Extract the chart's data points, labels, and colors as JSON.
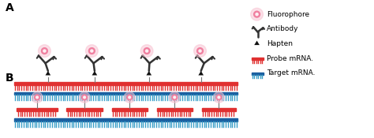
{
  "bg_color": "#ffffff",
  "panel_A_label": "A",
  "panel_B_label": "B",
  "probe_color": "#e03030",
  "probe_bar_color": "#e03030",
  "target_color": "#3a9fc8",
  "target_bar_color": "#1a5fa0",
  "fluorophore_pink": "#f080a0",
  "fluorophore_glow": "#f8c0d0",
  "antibody_color": "#333333",
  "hapten_color": "#111111",
  "stem_color": "#777777",
  "legend_items": [
    "Fluorophore",
    "Antibody",
    "Hapten",
    "Probe mRNA.",
    "Target mRNA."
  ],
  "legend_fontsize": 6.5,
  "panel_fontsize": 10
}
